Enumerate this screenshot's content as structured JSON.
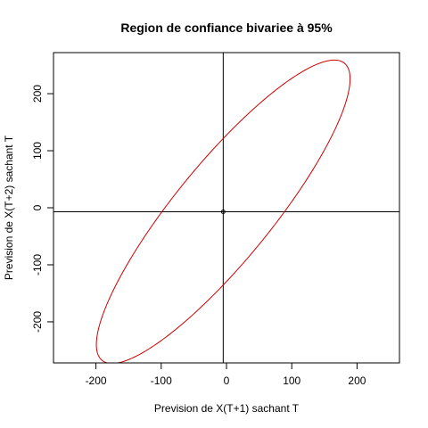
{
  "chart_data": {
    "type": "line",
    "title": "Region de confiance bivariee à 95%",
    "xlabel": "Prevision de X(T+1) sachant T",
    "ylabel": "Prevision de X(T+2) sachant T",
    "xlim": [
      -265,
      265
    ],
    "ylim": [
      -272,
      272
    ],
    "xticks": [
      -200,
      -100,
      0,
      100,
      200
    ],
    "yticks": [
      -200,
      -100,
      0,
      100,
      200
    ],
    "tick_labels_x": [
      "-200",
      "-100",
      "0",
      "100",
      "200"
    ],
    "tick_labels_y": [
      "-200",
      "-100",
      "0",
      "100",
      "200"
    ],
    "reference_lines": {
      "vertical_x": -5,
      "horizontal_y": -7
    },
    "center_point": {
      "x": -5,
      "y": -7
    },
    "ellipse": {
      "center": [
        -5,
        -7
      ],
      "semi_major": 320,
      "semi_minor": 78,
      "angle_deg": 55,
      "color": "#cc0000"
    },
    "grid": false,
    "legend": "none"
  }
}
